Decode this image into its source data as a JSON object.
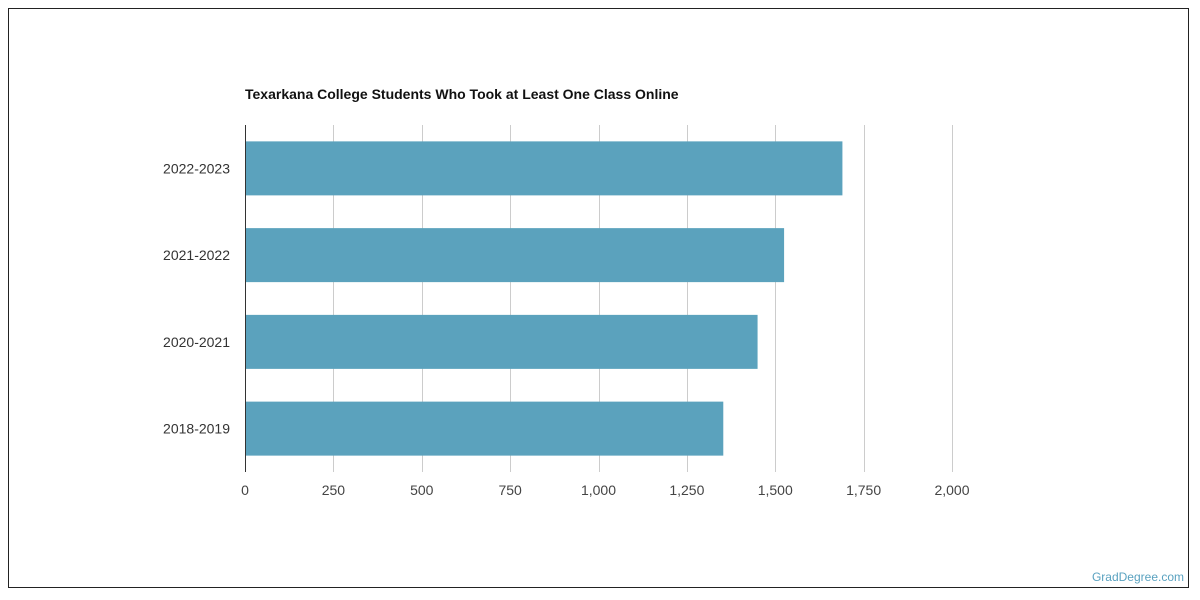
{
  "chart_data": {
    "type": "bar",
    "orientation": "horizontal",
    "title": "Texarkana College Students Who Took at Least One Class Online",
    "xlabel": "",
    "ylabel": "",
    "categories": [
      "2022-2023",
      "2021-2022",
      "2020-2021",
      "2018-2019"
    ],
    "values": [
      1690,
      1525,
      1450,
      1353
    ],
    "xlim": [
      0,
      2000
    ],
    "xticks": [
      0,
      250,
      500,
      750,
      1000,
      1250,
      1500,
      1750,
      2000
    ],
    "xtick_labels": [
      "0",
      "250",
      "500",
      "750",
      "1,000",
      "1,250",
      "1,500",
      "1,750",
      "2,000"
    ],
    "grid": "vertical",
    "legend": "none",
    "bar_color": "#5ba2bd"
  },
  "watermark": "GradDegree.com"
}
